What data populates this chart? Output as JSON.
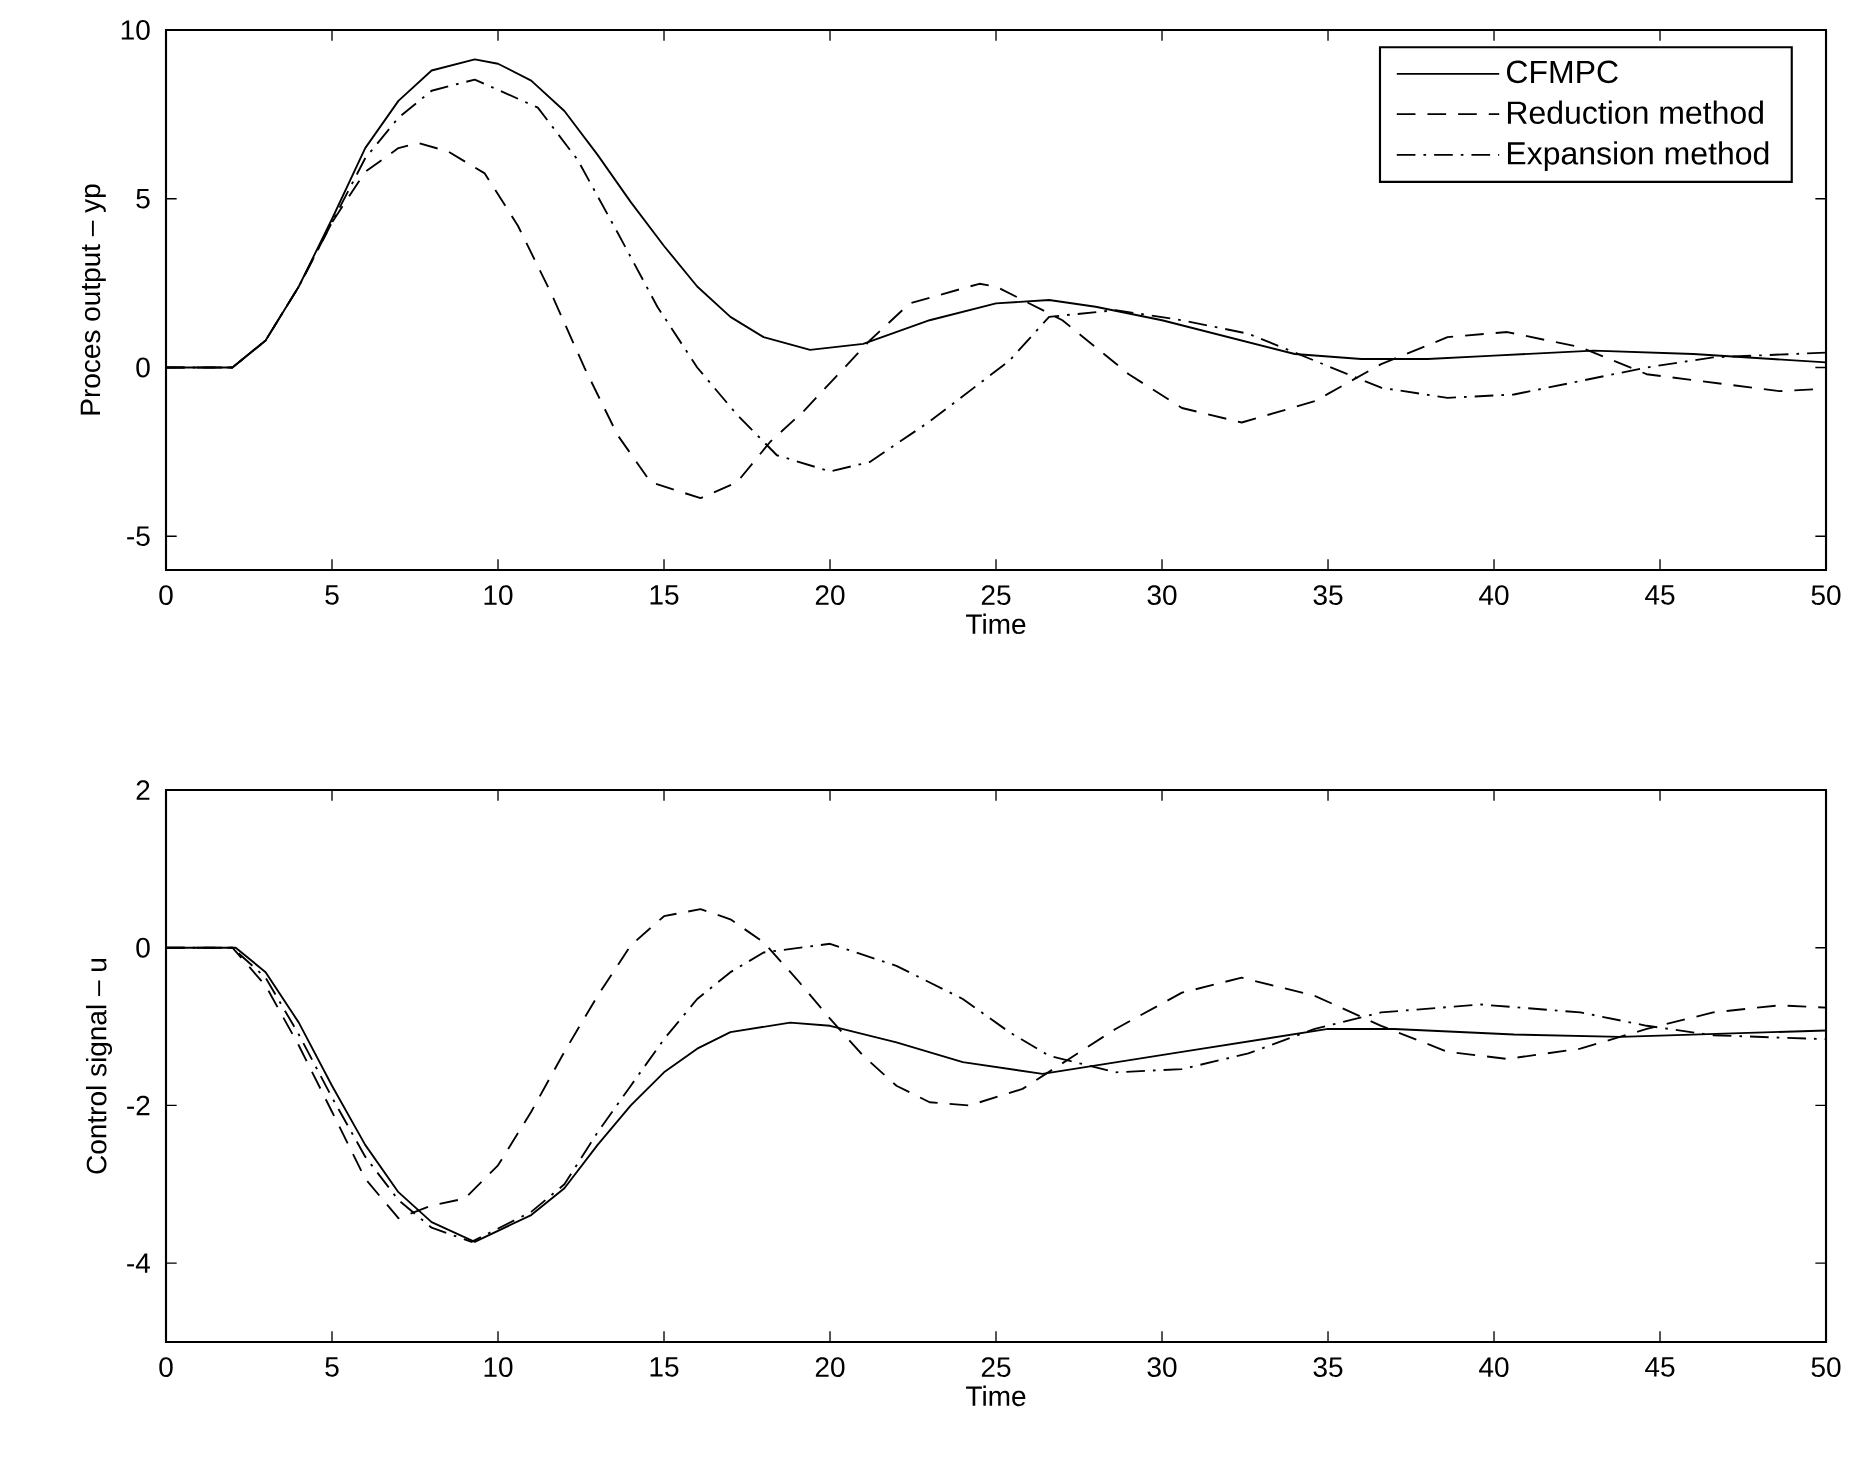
{
  "chart_data": [
    {
      "type": "line",
      "xlabel": "Time",
      "ylabel": "Proces output – yp",
      "xlim": [
        0,
        50
      ],
      "ylim": [
        -6,
        10
      ],
      "xticks": [
        0,
        5,
        10,
        15,
        20,
        25,
        30,
        35,
        40,
        45,
        50
      ],
      "yticks": [
        {
          "value": -6,
          "label": null
        },
        -5,
        0,
        5,
        10
      ],
      "legend": "top right",
      "series": [
        {
          "name": "CFMPC",
          "color": "#000000",
          "line_style": "solid",
          "x": [
            0,
            2,
            3,
            4,
            5,
            6,
            7,
            8,
            9.3,
            10,
            11,
            12,
            13,
            14,
            15,
            16,
            17,
            18,
            19.4,
            21,
            23,
            25,
            26.6,
            28,
            30,
            32,
            34,
            36,
            38,
            40,
            43,
            46,
            50
          ],
          "values": [
            0,
            0,
            0.8,
            2.4,
            4.4,
            6.5,
            7.9,
            8.8,
            9.13,
            9.0,
            8.5,
            7.6,
            6.3,
            4.9,
            3.6,
            2.4,
            1.5,
            0.9,
            0.52,
            0.7,
            1.4,
            1.9,
            2.0,
            1.8,
            1.4,
            0.9,
            0.4,
            0.25,
            0.25,
            0.35,
            0.5,
            0.4,
            0.15
          ]
        },
        {
          "name": "Reduction method",
          "color": "#000000",
          "line_style": "dashed",
          "x": [
            0,
            2,
            3,
            4,
            5,
            6,
            7,
            7.6,
            8.5,
            9.6,
            10.6,
            11.6,
            12.6,
            13.6,
            14.6,
            16.1,
            17.2,
            18.2,
            19.2,
            21.2,
            22.4,
            24.5,
            25,
            27,
            29,
            30.6,
            32.4,
            34.6,
            36.6,
            38.6,
            40.4,
            42.6,
            44.6,
            48.6,
            50
          ],
          "values": [
            0,
            0,
            0.8,
            2.4,
            4.3,
            5.8,
            6.5,
            6.65,
            6.4,
            5.75,
            4.2,
            2.2,
            0,
            -2.0,
            -3.4,
            -3.87,
            -3.4,
            -2.2,
            -1.3,
            0.8,
            1.9,
            2.48,
            2.4,
            1.4,
            -0.2,
            -1.2,
            -1.63,
            -1.0,
            0.1,
            0.9,
            1.05,
            0.6,
            -0.2,
            -0.7,
            -0.63
          ]
        },
        {
          "name": "Expansion method",
          "color": "#000000",
          "line_style": "dashdot",
          "x": [
            0,
            2,
            3,
            4,
            5,
            6,
            7,
            8,
            9.3,
            11.2,
            12.4,
            13.6,
            14.8,
            16,
            17.2,
            18.4,
            20,
            21.2,
            23,
            25.4,
            26.6,
            28.6,
            30.6,
            32.6,
            34.6,
            36.6,
            38.6,
            40.6,
            42.6,
            44.6,
            46.6,
            50
          ],
          "values": [
            0,
            0,
            0.8,
            2.4,
            4.3,
            6.2,
            7.4,
            8.2,
            8.53,
            7.7,
            6.15,
            4.0,
            1.8,
            0,
            -1.4,
            -2.6,
            -3.08,
            -2.8,
            -1.6,
            0.2,
            1.5,
            1.7,
            1.4,
            1.0,
            0.2,
            -0.6,
            -0.9,
            -0.8,
            -0.4,
            0,
            0.3,
            0.44
          ]
        }
      ]
    },
    {
      "type": "line",
      "xlabel": "Time",
      "ylabel": "Control signal – u",
      "xlim": [
        0,
        50
      ],
      "ylim": [
        -5,
        2
      ],
      "xticks": [
        0,
        5,
        10,
        15,
        20,
        25,
        30,
        35,
        40,
        45,
        50
      ],
      "yticks": [
        {
          "value": -5,
          "label": null
        },
        -4,
        -2,
        0,
        2
      ],
      "series": [
        {
          "color": "#000000",
          "line_style": "solid",
          "x": [
            0,
            2.1,
            3,
            4,
            5,
            6,
            7,
            8,
            9.3,
            11,
            12,
            13,
            14,
            15,
            16,
            17,
            18.8,
            20,
            22,
            24,
            26.4,
            30.6,
            35,
            37,
            40.6,
            43.8,
            50
          ],
          "values": [
            0,
            0,
            -0.31,
            -0.95,
            -1.75,
            -2.5,
            -3.1,
            -3.48,
            -3.73,
            -3.39,
            -3.05,
            -2.5,
            -2.0,
            -1.58,
            -1.28,
            -1.07,
            -0.95,
            -0.99,
            -1.2,
            -1.45,
            -1.6,
            -1.32,
            -1.03,
            -1.03,
            -1.1,
            -1.13,
            -1.05
          ]
        },
        {
          "color": "#000000",
          "line_style": "dashed",
          "x": [
            0,
            2,
            3,
            4,
            5,
            6,
            7,
            8,
            9,
            10,
            11,
            12,
            13,
            14,
            15,
            16.1,
            17,
            18,
            19,
            20,
            21,
            22,
            23,
            24.2,
            25.8,
            27.2,
            28.6,
            30.6,
            32.4,
            34.6,
            36.6,
            38.6,
            40.4,
            42.6,
            44.6,
            46.6,
            48.6,
            50
          ],
          "values": [
            0,
            0,
            -0.48,
            -1.24,
            -2.08,
            -2.93,
            -3.43,
            -3.27,
            -3.18,
            -2.76,
            -2.08,
            -1.32,
            -0.61,
            0.03,
            0.4,
            0.49,
            0.36,
            0.07,
            -0.4,
            -0.9,
            -1.37,
            -1.75,
            -1.96,
            -2.0,
            -1.79,
            -1.41,
            -1.03,
            -0.57,
            -0.38,
            -0.61,
            -0.99,
            -1.32,
            -1.41,
            -1.28,
            -1.03,
            -0.82,
            -0.73,
            -0.76
          ]
        },
        {
          "color": "#000000",
          "line_style": "dashdot",
          "x": [
            0,
            2,
            3,
            4,
            5,
            6,
            7,
            8,
            9.2,
            11,
            12,
            13,
            14,
            15,
            16,
            17,
            18,
            20,
            22,
            24,
            25.4,
            26.6,
            28.6,
            30.6,
            32.6,
            34.6,
            36.6,
            39.6,
            42.6,
            44.6,
            46.6,
            50
          ],
          "values": [
            0,
            0,
            -0.38,
            -1.1,
            -1.9,
            -2.65,
            -3.2,
            -3.55,
            -3.73,
            -3.35,
            -3.0,
            -2.34,
            -1.75,
            -1.16,
            -0.65,
            -0.31,
            -0.06,
            0.05,
            -0.23,
            -0.65,
            -1.07,
            -1.37,
            -1.58,
            -1.54,
            -1.34,
            -1.03,
            -0.82,
            -0.72,
            -0.82,
            -0.99,
            -1.11,
            -1.16
          ]
        }
      ]
    }
  ]
}
